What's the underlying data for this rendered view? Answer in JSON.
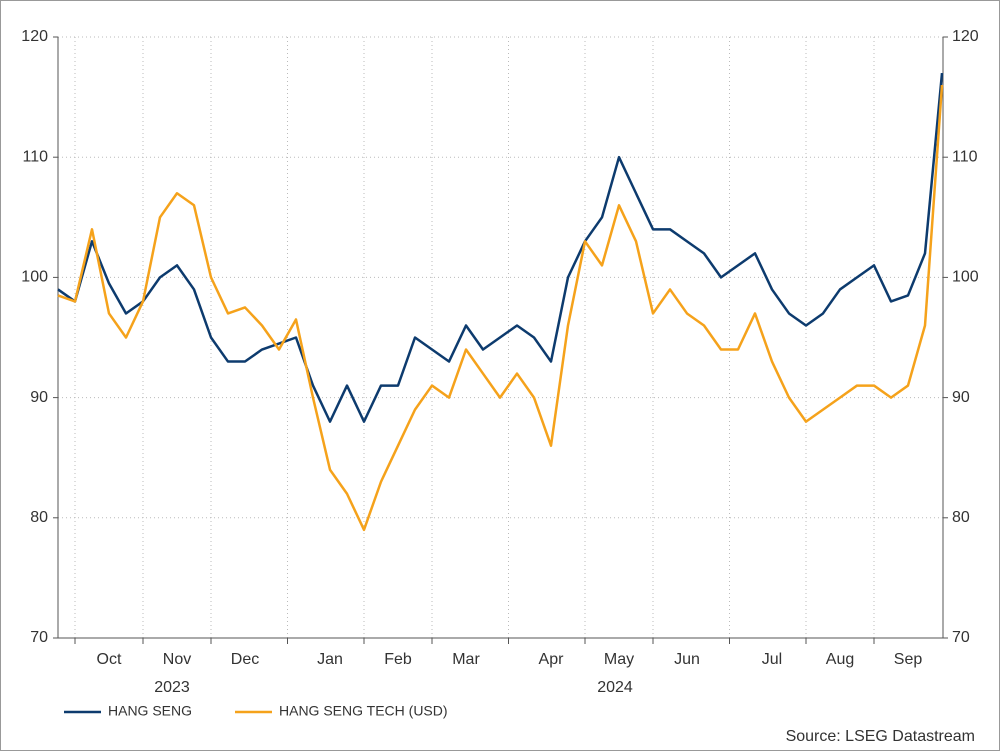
{
  "chart_data": {
    "type": "line",
    "categories": [
      null,
      null,
      null,
      "Oct",
      null,
      null,
      null,
      "Nov",
      null,
      null,
      null,
      "Dec",
      null,
      null,
      null,
      null,
      "Jan",
      null,
      null,
      null,
      "Feb",
      null,
      null,
      null,
      "Mar",
      null,
      null,
      null,
      null,
      "Apr",
      null,
      null,
      null,
      "May",
      null,
      null,
      null,
      "Jun",
      null,
      null,
      null,
      null,
      "Jul",
      null,
      null,
      null,
      "Aug",
      null,
      null,
      null,
      "Sep",
      null,
      null
    ],
    "x_group_labels": [
      "2023",
      "2024"
    ],
    "series": [
      {
        "name": "HANG SENG",
        "color": "#0d3b6e",
        "values": [
          99,
          98,
          103,
          99.5,
          97,
          98,
          100,
          101,
          99,
          95,
          93,
          93,
          94,
          94.5,
          95,
          91,
          88,
          91,
          88,
          91,
          91,
          95,
          94,
          93,
          96,
          94,
          95,
          96,
          95,
          93,
          100,
          103,
          105,
          110,
          107,
          104,
          104,
          103,
          102,
          100,
          101,
          102,
          99,
          97,
          96,
          97,
          99,
          100,
          101,
          98,
          98.5,
          102,
          117
        ]
      },
      {
        "name": "HANG SENG TECH (USD)",
        "color": "#f5a21b",
        "values": [
          98.5,
          98,
          104,
          97,
          95,
          98,
          105,
          107,
          106,
          100,
          97,
          97.5,
          96,
          94,
          96.5,
          90,
          84,
          82,
          79,
          83,
          86,
          89,
          91,
          90,
          94,
          92,
          90,
          92,
          90,
          86,
          96,
          103,
          101,
          106,
          103,
          97,
          99,
          97,
          96,
          94,
          94,
          97,
          93,
          90,
          88,
          89,
          90,
          91,
          91,
          90,
          91,
          96,
          116
        ]
      }
    ],
    "ylim": [
      70,
      120
    ],
    "yticks": [
      70,
      80,
      90,
      100,
      110,
      120
    ],
    "y2lim": [
      70,
      120
    ],
    "y2ticks": [
      70,
      80,
      90,
      100,
      110,
      120
    ],
    "grid": true,
    "source": "Source: LSEG Datastream"
  }
}
